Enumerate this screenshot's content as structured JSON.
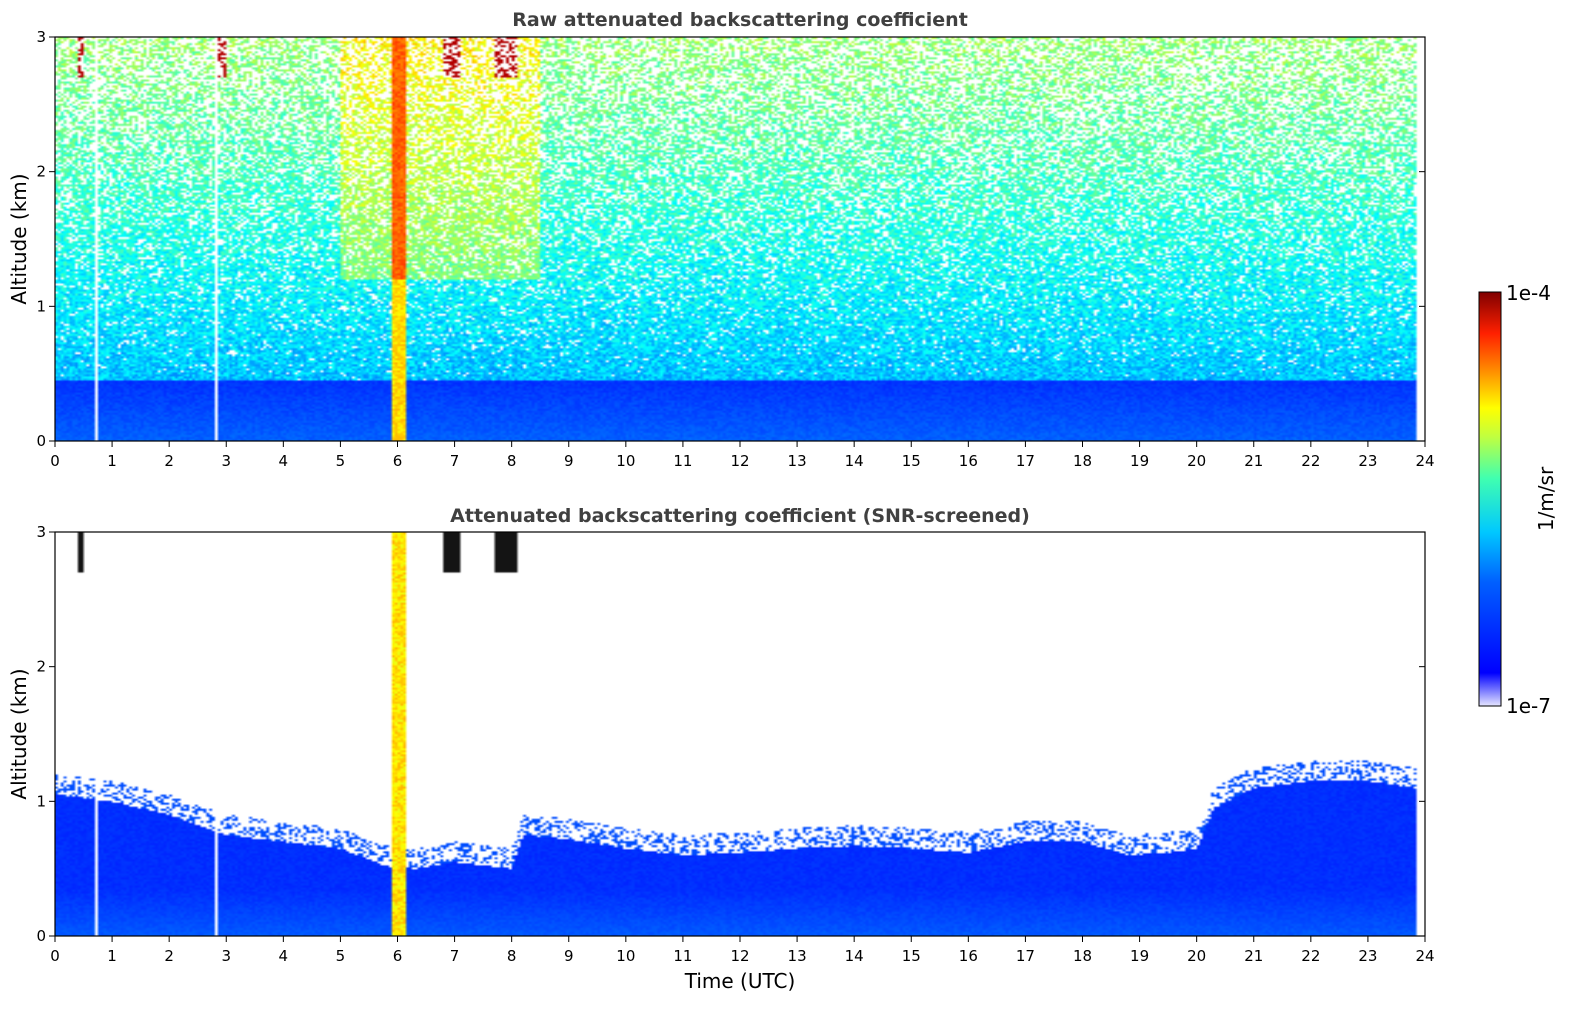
{
  "chart_data": [
    {
      "type": "heatmap",
      "title": "Raw attenuated backscattering coefficient",
      "xlabel": "",
      "ylabel": "Altitude (km)",
      "xlim": [
        0,
        24
      ],
      "ylim": [
        0,
        3
      ],
      "xticks": [
        0,
        1,
        2,
        3,
        4,
        5,
        6,
        7,
        8,
        9,
        10,
        11,
        12,
        13,
        14,
        15,
        16,
        17,
        18,
        19,
        20,
        21,
        22,
        23,
        24
      ],
      "yticks": [
        0,
        1,
        2,
        3
      ],
      "data_end_time": 23.85,
      "screened": false,
      "features": [
        {
          "name": "boundary layer",
          "time_range": [
            0,
            23.85
          ],
          "top_km": 0.5,
          "level": 0.18
        },
        {
          "name": "fog/precipitation column",
          "time_range": [
            5.9,
            6.15
          ],
          "top_km": 3.0,
          "level": 0.6
        },
        {
          "name": "upper cloud patches",
          "time_range": [
            0,
            8.3
          ],
          "altitude_range_km": [
            2.7,
            3.0
          ],
          "level": 0.95
        },
        {
          "name": "background noise",
          "time_range": [
            0,
            23.85
          ],
          "altitude_range_km": [
            0.5,
            3.0
          ],
          "level": 0.35
        }
      ]
    },
    {
      "type": "heatmap",
      "title": "Attenuated backscattering coefficient (SNR-screened)",
      "xlabel": "Time (UTC)",
      "ylabel": "Altitude (km)",
      "xlim": [
        0,
        24
      ],
      "ylim": [
        0,
        3
      ],
      "xticks": [
        0,
        1,
        2,
        3,
        4,
        5,
        6,
        7,
        8,
        9,
        10,
        11,
        12,
        13,
        14,
        15,
        16,
        17,
        18,
        19,
        20,
        21,
        22,
        23,
        24
      ],
      "yticks": [
        0,
        1,
        2,
        3
      ],
      "data_end_time": 23.85,
      "screened": true,
      "layer_top_km": {
        "times": [
          0,
          1,
          2,
          3,
          4,
          5,
          5.8,
          6.3,
          7,
          8,
          8.2,
          9,
          10,
          11,
          12,
          13,
          14,
          15,
          16,
          17,
          18,
          18.8,
          19.5,
          20,
          20.3,
          21,
          22,
          23,
          23.85
        ],
        "values": [
          1.05,
          1.0,
          0.9,
          0.75,
          0.7,
          0.65,
          0.52,
          0.5,
          0.55,
          0.5,
          0.75,
          0.72,
          0.65,
          0.6,
          0.62,
          0.65,
          0.67,
          0.65,
          0.62,
          0.7,
          0.7,
          0.6,
          0.62,
          0.65,
          0.95,
          1.1,
          1.15,
          1.15,
          1.1
        ]
      }
    }
  ],
  "colorbar": {
    "label": "1/m/sr",
    "max_label": "1e-4",
    "min_label": "1e-7",
    "colormap": "jet",
    "scale": "log"
  }
}
